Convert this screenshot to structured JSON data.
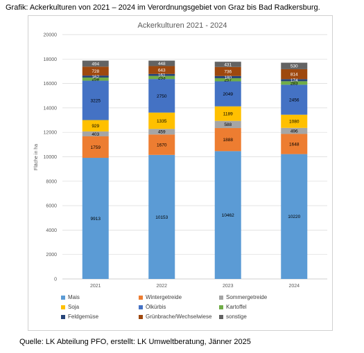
{
  "caption": "Grafik: Ackerkulturen von 2021 – 2024 im Verordnungsgebiet von Graz bis Bad Radkersburg.",
  "source": "Quelle: LK Abteilung PFO, erstellt: LK Umweltberatung, Jänner 2025",
  "chart_data": {
    "type": "bar",
    "stacked": true,
    "title": "Ackerkulturen 2021 - 2024",
    "xlabel": "",
    "ylabel": "Fläche in ha",
    "ylim": [
      0,
      20000
    ],
    "yticks": [
      0,
      2000,
      4000,
      6000,
      8000,
      10000,
      12000,
      14000,
      16000,
      18000,
      20000
    ],
    "grid": true,
    "legend_position": "bottom",
    "categories": [
      "2021",
      "2022",
      "2023",
      "2024"
    ],
    "series": [
      {
        "name": "Mais",
        "color": "#5b9bd5",
        "label_color": "#000000",
        "values": [
          9913,
          10153,
          10462,
          10220
        ]
      },
      {
        "name": "Wintergetreide",
        "color": "#ed7d31",
        "label_color": "#000000",
        "values": [
          1759,
          1670,
          1888,
          1648
        ]
      },
      {
        "name": "Sommergetreide",
        "color": "#a5a5a5",
        "label_color": "#000000",
        "values": [
          403,
          459,
          588,
          496
        ]
      },
      {
        "name": "Soja",
        "color": "#ffc000",
        "label_color": "#000000",
        "values": [
          929,
          1335,
          1189,
          1080
        ]
      },
      {
        "name": "Ölkürbis",
        "color": "#4472c4",
        "label_color": "#000000",
        "values": [
          3225,
          2750,
          2049,
          2456
        ]
      },
      {
        "name": "Kartoffel",
        "color": "#70ad47",
        "label_color": "#000000",
        "values": [
          258,
          253,
          257,
          283
        ]
      },
      {
        "name": "Feldgemüse",
        "color": "#264478",
        "label_color": "#ffffff",
        "values": [
          162,
          161,
          180,
          174
        ]
      },
      {
        "name": "Grünbrache/Wechselwiese",
        "color": "#9e480e",
        "label_color": "#ffffff",
        "values": [
          728,
          643,
          736,
          814
        ]
      },
      {
        "name": "sonstige",
        "color": "#636363",
        "label_color": "#ffffff",
        "values": [
          494,
          448,
          431,
          530
        ]
      }
    ]
  }
}
